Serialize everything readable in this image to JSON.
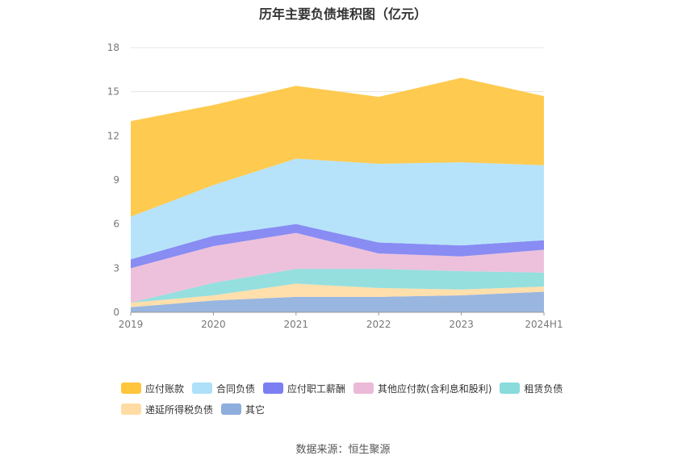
{
  "title": "历年主要负债堆积图（亿元）",
  "source": "数据来源：恒生聚源",
  "chart_data": {
    "type": "area",
    "stacked": true,
    "categories": [
      "2019",
      "2020",
      "2021",
      "2022",
      "2023",
      "2024H1"
    ],
    "ylim": [
      0,
      18
    ],
    "yticks": [
      "0",
      "3",
      "6",
      "9",
      "12",
      "15",
      "18"
    ],
    "grid": true,
    "legend_position": "bottom",
    "series": [
      {
        "name": "其它",
        "color": "#8eaedd",
        "values": [
          0.35,
          0.8,
          1.05,
          1.05,
          1.15,
          1.4
        ]
      },
      {
        "name": "递延所得税负债",
        "color": "#ffdca3",
        "values": [
          0.3,
          0.35,
          0.9,
          0.6,
          0.4,
          0.35
        ]
      },
      {
        "name": "租赁负债",
        "color": "#8adbdb",
        "values": [
          0.0,
          0.85,
          1.0,
          1.3,
          1.25,
          0.95
        ]
      },
      {
        "name": "其他应付款(含利息和股利)",
        "color": "#ebbad8",
        "values": [
          2.35,
          2.5,
          2.45,
          1.05,
          1.0,
          1.55
        ]
      },
      {
        "name": "应付职工薪酬",
        "color": "#7b7ff2",
        "values": [
          0.6,
          0.7,
          0.6,
          0.75,
          0.75,
          0.65
        ]
      },
      {
        "name": "合同负债",
        "color": "#aee0fa",
        "values": [
          2.9,
          3.45,
          4.45,
          5.35,
          5.65,
          5.1
        ]
      },
      {
        "name": "应付账款",
        "color": "#fec53d",
        "values": [
          6.5,
          5.45,
          4.95,
          4.55,
          5.75,
          4.7
        ]
      }
    ]
  },
  "legend": [
    {
      "name": "应付账款",
      "color": "#fec53d"
    },
    {
      "name": "合同负债",
      "color": "#aee0fa"
    },
    {
      "name": "应付职工薪酬",
      "color": "#7b7ff2"
    },
    {
      "name": "其他应付款(含利息和股利)",
      "color": "#ebbad8"
    },
    {
      "name": "租赁负债",
      "color": "#8adbdb"
    },
    {
      "name": "递延所得税负债",
      "color": "#ffdca3"
    },
    {
      "name": "其它",
      "color": "#8eaedd"
    }
  ]
}
